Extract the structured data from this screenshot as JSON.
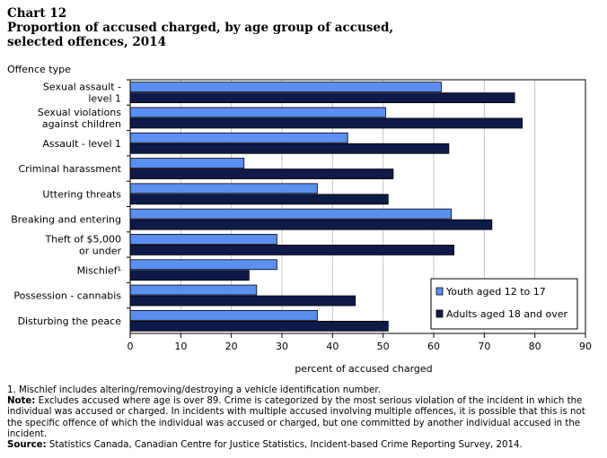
{
  "header": {
    "chart_number": "Chart 12",
    "title_line1": "Proportion  of accused charged, by age group of accused,",
    "title_line2": "selected offences, 2014"
  },
  "chart_data": {
    "type": "bar",
    "orientation": "horizontal",
    "title": "Proportion  of accused charged, by age group of accused, selected offences, 2014",
    "xlabel": "percent of accused charged",
    "ylabel": "Offence type",
    "xlim": [
      0,
      90
    ],
    "xticks": [
      0,
      10,
      20,
      30,
      40,
      50,
      60,
      70,
      80,
      90
    ],
    "grid": "vertical",
    "legend_position": "bottom-right",
    "categories": [
      [
        "Sexual assault -",
        "level 1"
      ],
      [
        "Sexual violations",
        "against children"
      ],
      [
        "Assault - level 1"
      ],
      [
        "Criminal harassment"
      ],
      [
        "Uttering threats"
      ],
      [
        "Breaking and entering"
      ],
      [
        "Theft of $5,000",
        "or under"
      ],
      [
        "Mischief¹"
      ],
      [
        "Possession - cannabis"
      ],
      [
        "Disturbing the peace"
      ]
    ],
    "series": [
      {
        "name": "Youth aged 12 to 17",
        "color": "#5b8ff2",
        "values": [
          61.5,
          50.5,
          43,
          22.5,
          37,
          63.5,
          29,
          29,
          25,
          37
        ]
      },
      {
        "name": "Adults aged 18 and over",
        "color": "#0e1a48",
        "values": [
          76,
          77.5,
          63,
          52,
          51,
          71.5,
          64,
          23.5,
          44.5,
          51
        ]
      }
    ]
  },
  "notes": {
    "footnote": "1. Mischief includes altering/removing/destroying a vehicle identification number.",
    "note_label": "Note:",
    "note_text": " Excludes accused where age is over 89. Crime is categorized by the most serious violation of the incident in which the individual was accused or charged. In incidents with multiple accused involving multiple offences, it is possible that this is not the specific offence of which the individual was accused or charged, but one committed by another individual accused in the incident.",
    "source_label": "Source:",
    "source_text": " Statistics Canada, Canadian Centre for Justice Statistics, Incident-based Crime Reporting Survey, 2014."
  }
}
